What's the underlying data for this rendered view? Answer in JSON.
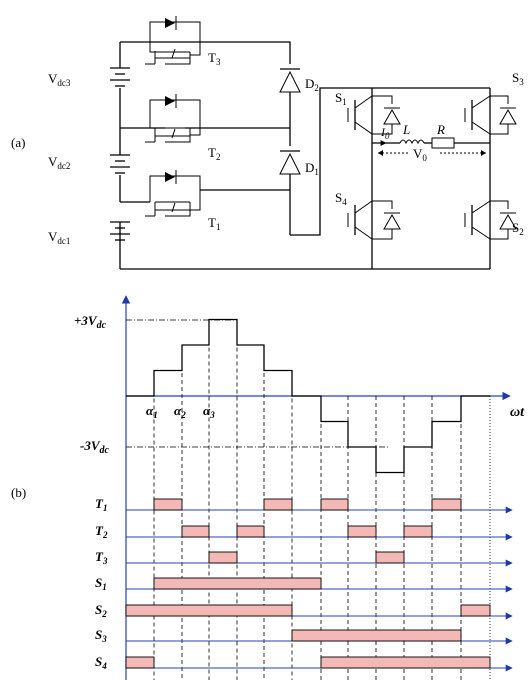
{
  "panel_labels": {
    "a": "(a)",
    "b": "(b)"
  },
  "circuit": {
    "sources": [
      {
        "main": "V",
        "sub": "dc3"
      },
      {
        "main": "V",
        "sub": "dc2"
      },
      {
        "main": "V",
        "sub": "dc1"
      }
    ],
    "mosfets": [
      {
        "main": "T",
        "sub": "3"
      },
      {
        "main": "T",
        "sub": "2"
      },
      {
        "main": "T",
        "sub": "1"
      }
    ],
    "diodes": [
      {
        "main": "D",
        "sub": "2"
      },
      {
        "main": "D",
        "sub": "1"
      }
    ],
    "igbts": [
      {
        "main": "S",
        "sub": "1"
      },
      {
        "main": "S",
        "sub": "3"
      },
      {
        "main": "S",
        "sub": "4"
      },
      {
        "main": "S",
        "sub": "2"
      }
    ],
    "load": {
      "current": {
        "main": "I",
        "sub": "0"
      },
      "inductor": "L",
      "resistor": "R",
      "voltage": {
        "main": "V",
        "sub": "0"
      }
    }
  },
  "waveform": {
    "top_label": {
      "main": "+3V",
      "sub": "dc"
    },
    "bottom_label": {
      "main": "-3V",
      "sub": "dc"
    },
    "axis_label": "ωt",
    "alphas": [
      {
        "main": "α",
        "sub": "1"
      },
      {
        "main": "α",
        "sub": "2"
      },
      {
        "main": "α",
        "sub": "3"
      }
    ],
    "levels": [
      0,
      1,
      2,
      3,
      2,
      1,
      0,
      -1,
      -2,
      -3,
      -2,
      -1,
      0
    ],
    "switch_rows": [
      {
        "main": "T",
        "sub": "1",
        "pulses": [
          [
            1,
            2
          ],
          [
            5,
            6
          ],
          [
            7,
            8
          ],
          [
            11,
            12
          ]
        ]
      },
      {
        "main": "T",
        "sub": "2",
        "pulses": [
          [
            2,
            3
          ],
          [
            4,
            5
          ],
          [
            8,
            9
          ],
          [
            10,
            11
          ]
        ]
      },
      {
        "main": "T",
        "sub": "3",
        "pulses": [
          [
            3,
            4
          ],
          [
            9,
            10
          ]
        ]
      },
      {
        "main": "S",
        "sub": "1",
        "pulses": [
          [
            1,
            7
          ]
        ]
      },
      {
        "main": "S",
        "sub": "2",
        "pulses": [
          [
            0,
            6
          ],
          [
            12,
            13
          ]
        ]
      },
      {
        "main": "S",
        "sub": "3",
        "pulses": [
          [
            6,
            12
          ]
        ]
      },
      {
        "main": "S",
        "sub": "4",
        "pulses": [
          [
            0,
            1
          ],
          [
            7,
            13
          ]
        ]
      }
    ]
  }
}
